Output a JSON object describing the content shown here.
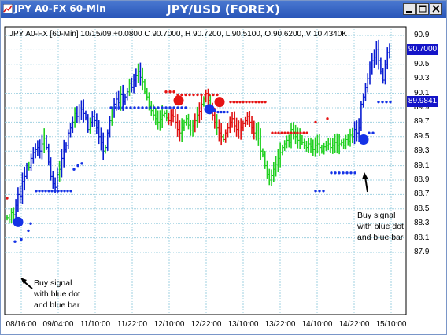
{
  "window": {
    "title": "JPY A0-FX 60-Min",
    "chart_title": "JPY/USD (FOREX)"
  },
  "chart_data": {
    "type": "ohlc",
    "info_line": "JPY A0-FX [60-Min] 10/15/09 +0.0800 C 90.7000, H 90.7200, L 90.5100, O 90.6200, V 10.4340K",
    "y_ticks": [
      "90.9",
      "90.7",
      "90.5",
      "90.3",
      "90.1",
      "89.9",
      "89.7",
      "89.5",
      "89.3",
      "89.1",
      "88.9",
      "88.7",
      "88.5",
      "88.3",
      "88.1",
      "87.9"
    ],
    "ylim": [
      87.9,
      90.9
    ],
    "x_ticks": [
      "08/16:00",
      "09/04:00",
      "11/10:00",
      "11/22:00",
      "12/10:00",
      "12/22:00",
      "13/10:00",
      "13/22:00",
      "14/10:00",
      "14/22:00",
      "15/10:00"
    ],
    "last_price": "90.7000",
    "marker_price": "89.9841",
    "grid": true,
    "series_colors": {
      "up": "#0a1ed2",
      "down": "#e01010",
      "neutral": "#20d020",
      "buy_dot": "#1432e6",
      "sell_dot": "#e61414"
    },
    "closes": [
      88.38,
      88.36,
      88.45,
      88.42,
      88.55,
      88.7,
      88.68,
      88.88,
      88.95,
      89.1,
      89.08,
      89.2,
      89.28,
      89.32,
      89.35,
      89.3,
      89.4,
      89.48,
      89.35,
      89.15,
      88.95,
      88.85,
      88.8,
      88.98,
      89.05,
      89.2,
      89.32,
      89.38,
      89.55,
      89.62,
      89.7,
      89.82,
      89.78,
      89.84,
      89.88,
      89.82,
      89.76,
      89.6,
      89.7,
      89.78,
      89.72,
      89.62,
      89.5,
      89.42,
      89.3,
      89.35,
      89.55,
      89.72,
      89.84,
      89.95,
      90.02,
      89.97,
      90.08,
      89.98,
      90.05,
      90.12,
      90.24,
      90.18,
      90.28,
      90.34,
      90.4,
      90.32,
      90.26,
      90.12,
      90.05,
      89.92,
      89.86,
      89.8,
      89.75,
      89.7,
      89.74,
      89.8,
      89.82,
      89.76,
      89.72,
      89.8,
      89.78,
      89.7,
      89.6,
      89.55,
      89.62,
      89.7,
      89.75,
      89.66,
      89.58,
      89.65,
      89.72,
      89.8,
      89.85,
      89.95,
      90.02,
      90.1,
      90.0,
      89.88,
      89.8,
      89.7,
      89.62,
      89.55,
      89.5,
      89.46,
      89.55,
      89.62,
      89.7,
      89.75,
      89.65,
      89.6,
      89.58,
      89.62,
      89.68,
      89.72,
      89.78,
      89.7,
      89.62,
      89.55,
      89.58,
      89.48,
      89.3,
      89.25,
      89.1,
      88.98,
      88.9,
      88.96,
      89.05,
      89.12,
      89.2,
      89.28,
      89.35,
      89.4,
      89.45,
      89.42,
      89.6,
      89.55,
      89.5,
      89.45,
      89.48,
      89.42,
      89.38,
      89.35,
      89.4,
      89.36,
      89.32,
      89.38,
      89.4,
      89.35,
      89.3,
      89.36,
      89.38,
      89.4,
      89.35,
      89.38,
      89.42,
      89.38,
      89.4,
      89.42,
      89.38,
      89.46,
      89.44,
      89.52,
      89.5,
      89.6,
      89.55,
      89.62,
      89.95,
      90.05,
      90.18,
      90.3,
      90.45,
      90.55,
      90.6,
      90.7,
      90.55,
      90.4,
      90.28,
      90.5,
      90.66,
      90.7
    ],
    "blue_dots": [
      [
        18,
        88.05
      ],
      [
        26,
        88.08
      ],
      [
        35,
        88.2
      ],
      [
        38,
        88.3
      ],
      [
        45,
        88.75
      ],
      [
        49,
        88.75
      ],
      [
        53,
        88.75
      ],
      [
        57,
        88.75
      ],
      [
        61,
        88.75
      ],
      [
        65,
        88.75
      ],
      [
        69,
        88.75
      ],
      [
        73,
        88.75
      ],
      [
        77,
        88.75
      ],
      [
        81,
        88.75
      ],
      [
        85,
        88.75
      ],
      [
        89,
        88.75
      ],
      [
        93,
        89.05
      ],
      [
        98,
        89.1
      ],
      [
        103,
        89.13
      ],
      [
        140,
        89.9
      ],
      [
        145,
        89.9
      ],
      [
        150,
        89.9
      ],
      [
        155,
        89.9
      ],
      [
        160,
        89.9
      ],
      [
        165,
        89.9
      ],
      [
        170,
        89.9
      ],
      [
        175,
        89.9
      ],
      [
        180,
        89.9
      ],
      [
        185,
        89.9
      ],
      [
        190,
        89.9
      ],
      [
        195,
        89.9
      ],
      [
        200,
        89.9
      ],
      [
        205,
        89.9
      ],
      [
        210,
        89.9
      ],
      [
        215,
        89.9
      ],
      [
        220,
        89.9
      ],
      [
        225,
        89.9
      ],
      [
        230,
        89.9
      ],
      [
        235,
        89.9
      ],
      [
        272,
        89.86
      ],
      [
        276,
        89.84
      ],
      [
        280,
        89.84
      ],
      [
        284,
        89.84
      ],
      [
        288,
        89.84
      ],
      [
        400,
        88.75
      ],
      [
        405,
        88.75
      ],
      [
        410,
        88.75
      ],
      [
        420,
        89.0
      ],
      [
        425,
        89.0
      ],
      [
        430,
        89.0
      ],
      [
        435,
        89.0
      ],
      [
        440,
        89.0
      ],
      [
        445,
        89.0
      ],
      [
        450,
        89.0
      ],
      [
        468,
        89.55
      ],
      [
        473,
        89.55
      ],
      [
        480,
        89.98
      ],
      [
        485,
        89.98
      ],
      [
        490,
        89.98
      ],
      [
        495,
        89.98
      ]
    ],
    "red_dots": [
      [
        8,
        88.65
      ],
      [
        210,
        90.12
      ],
      [
        215,
        90.12
      ],
      [
        220,
        90.12
      ],
      [
        225,
        90.08
      ],
      [
        230,
        90.08
      ],
      [
        235,
        90.08
      ],
      [
        240,
        90.08
      ],
      [
        245,
        90.08
      ],
      [
        250,
        90.08
      ],
      [
        255,
        90.08
      ],
      [
        260,
        90.08
      ],
      [
        265,
        90.08
      ],
      [
        270,
        90.08
      ],
      [
        275,
        90.08
      ],
      [
        292,
        89.98
      ],
      [
        296,
        89.98
      ],
      [
        300,
        89.98
      ],
      [
        304,
        89.98
      ],
      [
        308,
        89.98
      ],
      [
        312,
        89.98
      ],
      [
        316,
        89.98
      ],
      [
        320,
        89.98
      ],
      [
        324,
        89.98
      ],
      [
        328,
        89.98
      ],
      [
        332,
        89.98
      ],
      [
        336,
        89.98
      ],
      [
        345,
        89.55
      ],
      [
        349,
        89.55
      ],
      [
        353,
        89.55
      ],
      [
        357,
        89.55
      ],
      [
        361,
        89.55
      ],
      [
        365,
        89.55
      ],
      [
        369,
        89.55
      ],
      [
        373,
        89.55
      ],
      [
        377,
        89.55
      ],
      [
        381,
        89.55
      ],
      [
        385,
        89.55
      ],
      [
        389,
        89.55
      ],
      [
        400,
        89.7
      ],
      [
        415,
        89.75
      ]
    ],
    "big_blue_dots": [
      [
        22,
        88.32
      ],
      [
        265,
        89.88
      ],
      [
        461,
        89.46
      ]
    ],
    "big_red_dots": [
      [
        226,
        90.0
      ],
      [
        278,
        89.98
      ]
    ],
    "annotations": [
      {
        "lines": [
          "Buy signal",
          "with blue dot",
          "and blue bar"
        ]
      },
      {
        "lines": [
          "Buy signal",
          "with blue dot",
          "and blue bar"
        ]
      }
    ]
  }
}
